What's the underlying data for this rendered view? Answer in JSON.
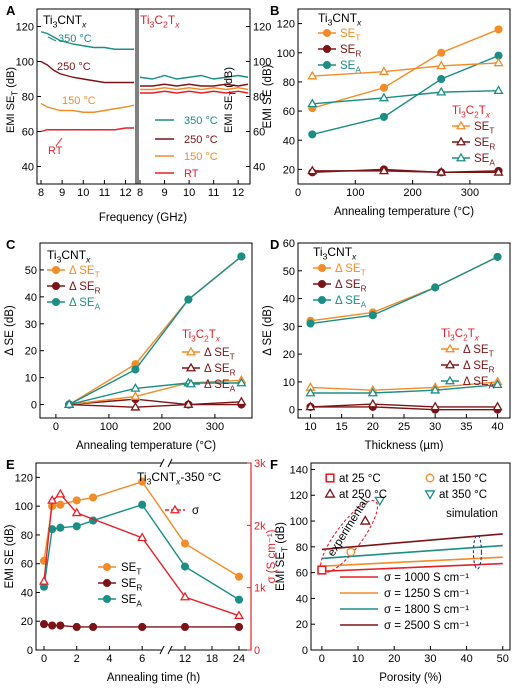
{
  "colors": {
    "orange": "#f28c28",
    "maroon": "#7b1416",
    "teal": "#1b8e86",
    "red": "#e32129",
    "salmon": "#f0a85b",
    "orange_sim": "#f5a83a",
    "teal_sim": "#2f9a94",
    "maroon_sim": "#8b2a22",
    "axis": "#000000"
  },
  "chart_data": [
    {
      "panel": "A",
      "type": "line",
      "ylabel": "EMI SE_T (dB)",
      "xlabel": "Frequency (GHz)",
      "left": {
        "title": "Ti3CNTx",
        "xlim": [
          8,
          12.4
        ],
        "ylim": [
          30,
          130
        ],
        "xticks": [
          "8",
          "9",
          "10",
          "11",
          "12"
        ],
        "yticks": [
          "40",
          "60",
          "80",
          "100",
          "120"
        ],
        "series": [
          {
            "name": "350 °C",
            "color": "teal",
            "x": [
              8,
              8.3,
              8.6,
              8.9,
              9.2,
              9.5,
              10,
              10.5,
              11,
              11.5,
              12,
              12.4
            ],
            "y": [
              117,
              116,
              114,
              112,
              111,
              110,
              109,
              108,
              108,
              107,
              107,
              107
            ]
          },
          {
            "name": "250 °C",
            "color": "maroon",
            "x": [
              8,
              8.3,
              8.6,
              8.9,
              9.2,
              9.5,
              10,
              10.5,
              11,
              11.5,
              12,
              12.4
            ],
            "y": [
              100,
              98,
              95,
              93,
              92,
              91,
              90,
              89,
              88,
              88,
              88,
              88
            ]
          },
          {
            "name": "150 °C",
            "color": "orange",
            "x": [
              8,
              8.3,
              8.6,
              8.9,
              9.2,
              9.5,
              10,
              10.5,
              11,
              11.5,
              12,
              12.4
            ],
            "y": [
              76,
              74,
              73,
              72,
              72,
              72,
              71,
              71,
              72,
              73,
              74,
              75
            ]
          },
          {
            "name": "RT",
            "color": "red",
            "x": [
              8,
              8.3,
              8.6,
              8.9,
              9.2,
              9.5,
              10,
              10.5,
              11,
              11.5,
              12,
              12.4
            ],
            "y": [
              60,
              61,
              61,
              61,
              61,
              61,
              61,
              61,
              61,
              61,
              62,
              62
            ]
          }
        ]
      },
      "right": {
        "title": "Ti3C2Tx",
        "xlim": [
          8,
          12.4
        ],
        "ylim": [
          30,
          130
        ],
        "xticks": [
          "8",
          "9",
          "10",
          "11",
          "12"
        ],
        "yticks": [
          "40",
          "60",
          "80",
          "100",
          "120"
        ],
        "legend": [
          "350 °C",
          "250 °C",
          "150 °C",
          "RT"
        ],
        "series": [
          {
            "name": "350 °C",
            "color": "teal",
            "x": [
              8,
              8.5,
              9,
              9.5,
              10,
              10.5,
              11,
              11.5,
              12,
              12.4
            ],
            "y": [
              91,
              90,
              92,
              90,
              91,
              92,
              90,
              91,
              92,
              91
            ]
          },
          {
            "name": "250 °C",
            "color": "maroon",
            "x": [
              8,
              8.5,
              9,
              9.5,
              10,
              10.5,
              11,
              11.5,
              12,
              12.4
            ],
            "y": [
              86,
              86,
              87,
              86,
              87,
              86,
              86,
              87,
              86,
              87
            ]
          },
          {
            "name": "150 °C",
            "color": "orange",
            "x": [
              8,
              8.5,
              9,
              9.5,
              10,
              10.5,
              11,
              11.5,
              12,
              12.4
            ],
            "y": [
              84,
              84,
              85,
              84,
              85,
              84,
              85,
              84,
              85,
              84
            ]
          },
          {
            "name": "RT",
            "color": "red",
            "x": [
              8,
              8.5,
              9,
              9.5,
              10,
              10.5,
              11,
              11.5,
              12,
              12.4
            ],
            "y": [
              82,
              82,
              83,
              82,
              83,
              82,
              83,
              82,
              83,
              82
            ]
          }
        ]
      }
    },
    {
      "panel": "B",
      "type": "line",
      "title": "Ti3CNTx",
      "xlabel": "Annealing temperature (°C)",
      "ylabel": "EMI SE (dB)",
      "xlim": [
        0,
        370
      ],
      "ylim": [
        10,
        130
      ],
      "xticks": [
        "0",
        "100",
        "200",
        "300"
      ],
      "yticks": [
        "20",
        "40",
        "60",
        "80",
        "100",
        "120"
      ],
      "legend_title_2": "Ti3C2Tx",
      "series": [
        {
          "name": "SE_T",
          "group": "Ti3CNTx",
          "color": "orange",
          "filled": true,
          "marker": "circle",
          "x": [
            25,
            150,
            250,
            350
          ],
          "y": [
            62,
            76,
            100,
            116
          ]
        },
        {
          "name": "SE_R",
          "group": "Ti3CNTx",
          "color": "maroon",
          "filled": true,
          "marker": "circle",
          "x": [
            25,
            150,
            250,
            350
          ],
          "y": [
            18,
            20,
            18,
            19
          ]
        },
        {
          "name": "SE_A",
          "group": "Ti3CNTx",
          "color": "teal",
          "filled": true,
          "marker": "circle",
          "x": [
            25,
            150,
            250,
            350
          ],
          "y": [
            44,
            56,
            82,
            98
          ]
        },
        {
          "name": "SE_T",
          "group": "Ti3C2Tx",
          "color": "orange",
          "filled": false,
          "marker": "triangle",
          "x": [
            25,
            150,
            250,
            350
          ],
          "y": [
            84,
            87,
            91,
            93
          ]
        },
        {
          "name": "SE_R",
          "group": "Ti3C2Tx",
          "color": "maroon",
          "filled": false,
          "marker": "triangle",
          "x": [
            25,
            150,
            250,
            350
          ],
          "y": [
            19,
            19,
            18,
            18
          ]
        },
        {
          "name": "SE_A",
          "group": "Ti3C2Tx",
          "color": "teal",
          "filled": false,
          "marker": "triangle",
          "x": [
            25,
            150,
            250,
            350
          ],
          "y": [
            65,
            69,
            73,
            74
          ]
        }
      ]
    },
    {
      "panel": "C",
      "type": "line",
      "title": "Ti3CNTx",
      "xlabel": "Annealing temperature (°C)",
      "ylabel": "Δ SE (dB)",
      "xlim": [
        -30,
        370
      ],
      "ylim": [
        -5,
        60
      ],
      "xticks": [
        "0",
        "100",
        "200",
        "300"
      ],
      "yticks": [
        "0",
        "10",
        "20",
        "30",
        "40",
        "50"
      ],
      "legend_title_2": "Ti3C2Tx",
      "series": [
        {
          "name": "Δ SE_T",
          "group": "Ti3CNTx",
          "color": "orange",
          "filled": true,
          "marker": "circle",
          "x": [
            25,
            150,
            250,
            350
          ],
          "y": [
            0,
            15,
            39,
            55
          ]
        },
        {
          "name": "Δ SE_R",
          "group": "Ti3CNTx",
          "color": "maroon",
          "filled": true,
          "marker": "circle",
          "x": [
            25,
            150,
            250,
            350
          ],
          "y": [
            0,
            2,
            0,
            0
          ]
        },
        {
          "name": "Δ SE_A",
          "group": "Ti3CNTx",
          "color": "teal",
          "filled": true,
          "marker": "circle",
          "x": [
            25,
            150,
            250,
            350
          ],
          "y": [
            0,
            13,
            39,
            55
          ]
        },
        {
          "name": "Δ SE_T",
          "group": "Ti3C2Tx",
          "color": "orange",
          "filled": false,
          "marker": "triangle",
          "x": [
            25,
            150,
            250,
            350
          ],
          "y": [
            0,
            3,
            8,
            9
          ]
        },
        {
          "name": "Δ SE_R",
          "group": "Ti3C2Tx",
          "color": "maroon",
          "filled": false,
          "marker": "triangle",
          "x": [
            25,
            150,
            250,
            350
          ],
          "y": [
            0,
            -1,
            0,
            1
          ]
        },
        {
          "name": "Δ SE_A",
          "group": "Ti3C2Tx",
          "color": "teal",
          "filled": false,
          "marker": "triangle",
          "x": [
            25,
            150,
            250,
            350
          ],
          "y": [
            0,
            6,
            8,
            8
          ]
        }
      ]
    },
    {
      "panel": "D",
      "type": "line",
      "title": "Ti3CNTx",
      "xlabel": "Thickness (µm)",
      "ylabel": "Δ SE (dB)",
      "xlim": [
        8,
        42
      ],
      "ylim": [
        -3,
        60
      ],
      "xticks": [
        "10",
        "15",
        "20",
        "25",
        "30",
        "35",
        "40"
      ],
      "yticks": [
        "0",
        "10",
        "20",
        "30",
        "40",
        "50",
        "60"
      ],
      "legend_title_2": "Ti3C2Tx",
      "series": [
        {
          "name": "Δ SE_T",
          "group": "Ti3CNTx",
          "color": "orange",
          "filled": true,
          "marker": "circle",
          "x": [
            10,
            20,
            30,
            40
          ],
          "y": [
            32,
            35,
            44,
            55
          ]
        },
        {
          "name": "Δ SE_R",
          "group": "Ti3CNTx",
          "color": "maroon",
          "filled": true,
          "marker": "circle",
          "x": [
            10,
            20,
            30,
            40
          ],
          "y": [
            1,
            1,
            0,
            0
          ]
        },
        {
          "name": "Δ SE_A",
          "group": "Ti3CNTx",
          "color": "teal",
          "filled": true,
          "marker": "circle",
          "x": [
            10,
            20,
            30,
            40
          ],
          "y": [
            31,
            34,
            44,
            55
          ]
        },
        {
          "name": "Δ SE_T",
          "group": "Ti3C2Tx",
          "color": "orange",
          "filled": false,
          "marker": "triangle",
          "x": [
            10,
            20,
            30,
            40
          ],
          "y": [
            8,
            7,
            8,
            10
          ]
        },
        {
          "name": "Δ SE_R",
          "group": "Ti3C2Tx",
          "color": "maroon",
          "filled": false,
          "marker": "triangle",
          "x": [
            10,
            20,
            30,
            40
          ],
          "y": [
            1,
            2,
            1,
            1
          ]
        },
        {
          "name": "Δ SE_A",
          "group": "Ti3C2Tx",
          "color": "teal",
          "filled": false,
          "marker": "triangle",
          "x": [
            10,
            20,
            30,
            40
          ],
          "y": [
            6,
            6,
            7,
            9
          ]
        }
      ]
    },
    {
      "panel": "E",
      "type": "line",
      "title": "Ti3CNTx-350 °C",
      "xlabel": "Annealing time (h)",
      "ylabel": "EMI SE (dB)",
      "y2label": "σ (S cm⁻¹)",
      "xticks": [
        "0",
        "2",
        "4",
        "6",
        "12",
        "18",
        "24"
      ],
      "yticks": [
        "0",
        "20",
        "40",
        "60",
        "80",
        "100",
        "120"
      ],
      "y2ticks": [
        "0",
        "1k",
        "2k",
        "3k"
      ],
      "ylim": [
        0,
        130
      ],
      "y2lim": [
        0,
        3000
      ],
      "series": [
        {
          "name": "SE_T",
          "axis": "left",
          "color": "orange",
          "filled": true,
          "marker": "circle",
          "x": [
            0,
            0.5,
            1,
            2,
            3,
            6,
            12,
            24
          ],
          "y": [
            62,
            100,
            101,
            104,
            106,
            117,
            74,
            51
          ]
        },
        {
          "name": "SE_R",
          "axis": "left",
          "color": "maroon",
          "filled": true,
          "marker": "circle",
          "x": [
            0,
            0.5,
            1,
            2,
            3,
            6,
            12,
            24
          ],
          "y": [
            18,
            17,
            17,
            16,
            16,
            16,
            16,
            16
          ]
        },
        {
          "name": "SE_A",
          "axis": "left",
          "color": "teal",
          "filled": true,
          "marker": "circle",
          "x": [
            0,
            0.5,
            1,
            2,
            3,
            6,
            12,
            24
          ],
          "y": [
            44,
            84,
            85,
            86,
            90,
            101,
            58,
            35
          ]
        },
        {
          "name": "σ",
          "axis": "right",
          "color": "red",
          "filled": false,
          "marker": "triangle",
          "x": [
            0,
            0.5,
            1,
            2,
            6,
            12,
            24
          ],
          "y": [
            1100,
            2400,
            2500,
            2200,
            1800,
            850,
            550
          ]
        }
      ]
    },
    {
      "panel": "F",
      "type": "scatter",
      "xlabel": "Porosity (%)",
      "ylabel": "EMI SE_T (dB)",
      "xlim": [
        -3,
        52
      ],
      "ylim": [
        0,
        145
      ],
      "xticks": [
        "0",
        "10",
        "20",
        "30",
        "40",
        "50"
      ],
      "yticks": [
        "0",
        "20",
        "40",
        "60",
        "80",
        "100",
        "120",
        "140"
      ],
      "legend": [
        "at 25 °C",
        "at 150 °C",
        "at 250 °C",
        "at 350 °C"
      ],
      "annotations": [
        "experimental",
        "simulation"
      ],
      "experimental": [
        {
          "name": "at 25 °C",
          "color": "red",
          "marker": "square",
          "x": 0,
          "y": 62
        },
        {
          "name": "at 150 °C",
          "color": "orange",
          "marker": "circle",
          "x": 8,
          "y": 76
        },
        {
          "name": "at 250 °C",
          "color": "maroon",
          "marker": "triangle-up",
          "x": 12,
          "y": 100
        },
        {
          "name": "at 350 °C",
          "color": "teal",
          "marker": "triangle-down",
          "x": 16,
          "y": 116
        }
      ],
      "simulation": [
        {
          "name": "σ = 1000 S cm⁻¹",
          "color": "red",
          "x": [
            0,
            50
          ],
          "y": [
            61,
            67
          ]
        },
        {
          "name": "σ = 1250 S cm⁻¹",
          "color": "orange",
          "x": [
            0,
            50
          ],
          "y": [
            65,
            72
          ]
        },
        {
          "name": "σ = 1800 S cm⁻¹",
          "color": "teal",
          "x": [
            0,
            50
          ],
          "y": [
            71,
            81
          ]
        },
        {
          "name": "σ = 2500 S cm⁻¹",
          "color": "maroon",
          "x": [
            0,
            50
          ],
          "y": [
            78,
            90
          ]
        }
      ]
    }
  ]
}
